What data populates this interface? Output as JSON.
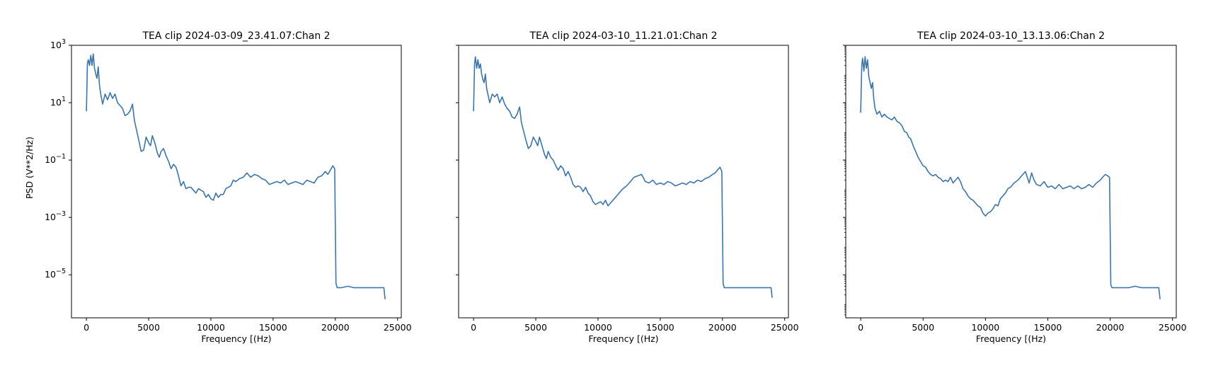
{
  "figure": {
    "ylabel": "PSD (V**2/Hz)",
    "line_color": "#3a75af"
  },
  "chart_data": [
    {
      "type": "line",
      "title": "TEA clip 2024-03-09_23.41.07:Chan 2",
      "xlabel": "Frequency [(Hz)",
      "ylabel": "PSD (V**2/Hz)",
      "xlim": [
        -1200,
        25300
      ],
      "ylim_log10": [
        -6.5,
        3.0
      ],
      "yscale": "log",
      "xticks": [
        "0",
        "5000",
        "10000",
        "15000",
        "20000",
        "25000"
      ],
      "yticks": [
        "10^3",
        "10^1",
        "10^-1",
        "10^-3",
        "10^-5"
      ],
      "series": [
        {
          "x": [
            0,
            80,
            150,
            250,
            350,
            450,
            550,
            650,
            750,
            850,
            950,
            1050,
            1150,
            1300,
            1500,
            1700,
            1900,
            2100,
            2300,
            2500,
            2700,
            2900,
            3100,
            3300,
            3500,
            3700,
            3850,
            4000,
            4200,
            4400,
            4600,
            4800,
            5000,
            5150,
            5300,
            5500,
            5700,
            5850,
            6000,
            6200,
            6400,
            6600,
            6800,
            7000,
            7200,
            7400,
            7600,
            7800,
            8000,
            8200,
            8400,
            8600,
            8800,
            9000,
            9200,
            9400,
            9600,
            9800,
            10000,
            10200,
            10400,
            10600,
            10800,
            11000,
            11200,
            11400,
            11600,
            11800,
            12000,
            12300,
            12600,
            12900,
            13200,
            13500,
            13800,
            14100,
            14400,
            14700,
            15000,
            15300,
            15600,
            15900,
            16200,
            16500,
            16800,
            17100,
            17400,
            17700,
            18000,
            18300,
            18600,
            18900,
            19200,
            19400,
            19600,
            19800,
            19950,
            20050,
            20150,
            20500,
            21000,
            21500,
            22000,
            22500,
            23000,
            23500,
            23900,
            24000
          ],
          "y_log10": [
            0.7,
            2.35,
            2.5,
            2.3,
            2.65,
            2.3,
            2.7,
            2.2,
            2.0,
            1.85,
            2.25,
            1.6,
            1.3,
            0.95,
            1.3,
            1.1,
            1.35,
            1.15,
            1.3,
            1.0,
            0.9,
            0.8,
            0.55,
            0.6,
            0.7,
            0.95,
            0.4,
            0.1,
            -0.3,
            -0.7,
            -0.65,
            -0.2,
            -0.4,
            -0.5,
            -0.15,
            -0.4,
            -0.75,
            -0.9,
            -0.7,
            -0.6,
            -0.85,
            -1.05,
            -1.3,
            -1.15,
            -1.25,
            -1.55,
            -1.9,
            -1.75,
            -2.0,
            -1.95,
            -1.95,
            -2.05,
            -2.15,
            -2.0,
            -2.05,
            -2.1,
            -2.3,
            -2.2,
            -2.35,
            -2.4,
            -2.15,
            -2.3,
            -2.2,
            -2.2,
            -2.0,
            -1.95,
            -1.9,
            -1.7,
            -1.75,
            -1.65,
            -1.6,
            -1.45,
            -1.6,
            -1.5,
            -1.55,
            -1.65,
            -1.7,
            -1.85,
            -1.8,
            -1.75,
            -1.8,
            -1.7,
            -1.85,
            -1.8,
            -1.75,
            -1.8,
            -1.85,
            -1.7,
            -1.75,
            -1.8,
            -1.6,
            -1.55,
            -1.4,
            -1.5,
            -1.35,
            -1.2,
            -1.3,
            -5.3,
            -5.45,
            -5.45,
            -5.4,
            -5.45,
            -5.45,
            -5.45,
            -5.45,
            -5.45,
            -5.45,
            -5.85
          ]
        }
      ]
    },
    {
      "type": "line",
      "title": "TEA clip 2024-03-10_11.21.01:Chan 2",
      "xlabel": "Frequency [(Hz)",
      "xlim": [
        -1200,
        25300
      ],
      "ylim_log10": [
        -6.5,
        3.0
      ],
      "yscale": "log",
      "xticks": [
        "0",
        "5000",
        "10000",
        "15000",
        "20000",
        "25000"
      ],
      "series": [
        {
          "x": [
            0,
            80,
            150,
            250,
            350,
            450,
            550,
            650,
            750,
            850,
            950,
            1050,
            1150,
            1300,
            1500,
            1700,
            1900,
            2100,
            2300,
            2500,
            2700,
            2900,
            3100,
            3300,
            3500,
            3700,
            3850,
            4000,
            4200,
            4400,
            4600,
            4800,
            5000,
            5150,
            5300,
            5500,
            5700,
            5850,
            6000,
            6200,
            6400,
            6600,
            6800,
            7000,
            7200,
            7400,
            7600,
            7800,
            8000,
            8200,
            8400,
            8600,
            8800,
            9000,
            9200,
            9400,
            9600,
            9800,
            10000,
            10200,
            10400,
            10600,
            10800,
            11000,
            11200,
            11400,
            11600,
            11800,
            12000,
            12300,
            12600,
            12900,
            13200,
            13500,
            13800,
            14100,
            14400,
            14700,
            15000,
            15300,
            15600,
            15900,
            16200,
            16500,
            16800,
            17100,
            17400,
            17700,
            18000,
            18300,
            18600,
            18900,
            19200,
            19400,
            19600,
            19800,
            19950,
            20050,
            20150,
            20500,
            21000,
            21500,
            22000,
            22500,
            23000,
            23500,
            23900,
            24000
          ],
          "y_log10": [
            0.7,
            2.35,
            2.6,
            2.2,
            2.5,
            2.2,
            2.35,
            2.0,
            1.8,
            1.7,
            2.0,
            1.5,
            1.3,
            1.0,
            1.3,
            1.2,
            1.3,
            1.0,
            1.2,
            0.95,
            0.8,
            0.7,
            0.5,
            0.45,
            0.6,
            0.85,
            0.3,
            0.05,
            -0.3,
            -0.6,
            -0.5,
            -0.2,
            -0.35,
            -0.5,
            -0.2,
            -0.5,
            -0.8,
            -0.95,
            -0.7,
            -0.9,
            -1.0,
            -1.2,
            -1.35,
            -1.2,
            -1.3,
            -1.55,
            -1.4,
            -1.6,
            -1.85,
            -1.95,
            -1.9,
            -1.95,
            -2.1,
            -1.95,
            -2.15,
            -2.25,
            -2.45,
            -2.55,
            -2.5,
            -2.45,
            -2.55,
            -2.4,
            -2.6,
            -2.5,
            -2.4,
            -2.3,
            -2.2,
            -2.1,
            -2.0,
            -1.9,
            -1.75,
            -1.6,
            -1.55,
            -1.5,
            -1.75,
            -1.8,
            -1.7,
            -1.85,
            -1.8,
            -1.85,
            -1.75,
            -1.8,
            -1.9,
            -1.85,
            -1.8,
            -1.85,
            -1.75,
            -1.8,
            -1.7,
            -1.75,
            -1.65,
            -1.6,
            -1.5,
            -1.45,
            -1.35,
            -1.25,
            -1.4,
            -5.3,
            -5.45,
            -5.45,
            -5.45,
            -5.45,
            -5.45,
            -5.45,
            -5.45,
            -5.45,
            -5.45,
            -5.8
          ]
        }
      ]
    },
    {
      "type": "line",
      "title": "TEA clip 2024-03-10_13.13.06:Chan 2",
      "xlabel": "Frequency [(Hz)",
      "xlim": [
        -1200,
        25300
      ],
      "ylim_log10": [
        -6.5,
        3.0
      ],
      "yscale": "log",
      "xticks": [
        "0",
        "5000",
        "10000",
        "15000",
        "20000",
        "25000"
      ],
      "series": [
        {
          "x": [
            0,
            80,
            150,
            250,
            350,
            450,
            550,
            650,
            750,
            850,
            950,
            1050,
            1150,
            1300,
            1500,
            1700,
            1900,
            2100,
            2300,
            2500,
            2700,
            2900,
            3100,
            3300,
            3500,
            3700,
            3850,
            4000,
            4200,
            4400,
            4600,
            4800,
            5000,
            5200,
            5400,
            5600,
            5800,
            6000,
            6200,
            6400,
            6600,
            6800,
            7000,
            7200,
            7400,
            7600,
            7800,
            8000,
            8200,
            8400,
            8600,
            8800,
            9000,
            9200,
            9400,
            9600,
            9800,
            10000,
            10200,
            10400,
            10600,
            10800,
            11000,
            11200,
            11400,
            11600,
            11800,
            12000,
            12300,
            12600,
            12900,
            13200,
            13500,
            13700,
            13900,
            14100,
            14400,
            14700,
            15000,
            15300,
            15600,
            15900,
            16200,
            16500,
            16800,
            17100,
            17400,
            17700,
            18000,
            18300,
            18600,
            18900,
            19200,
            19400,
            19600,
            19800,
            19950,
            20050,
            20150,
            20500,
            21000,
            21500,
            22000,
            22500,
            23000,
            23500,
            23900,
            24000
          ],
          "y_log10": [
            0.65,
            2.3,
            2.55,
            2.1,
            2.6,
            2.2,
            2.5,
            1.9,
            1.7,
            1.5,
            1.7,
            1.1,
            0.8,
            0.6,
            0.7,
            0.5,
            0.6,
            0.5,
            0.45,
            0.4,
            0.5,
            0.35,
            0.3,
            0.2,
            0.0,
            -0.05,
            -0.2,
            -0.25,
            -0.5,
            -0.7,
            -0.9,
            -1.05,
            -1.2,
            -1.25,
            -1.4,
            -1.5,
            -1.55,
            -1.5,
            -1.6,
            -1.65,
            -1.75,
            -1.7,
            -1.75,
            -1.6,
            -1.8,
            -1.7,
            -1.6,
            -1.75,
            -2.0,
            -2.1,
            -2.25,
            -2.35,
            -2.4,
            -2.5,
            -2.6,
            -2.65,
            -2.85,
            -2.95,
            -2.85,
            -2.8,
            -2.7,
            -2.55,
            -2.6,
            -2.35,
            -2.25,
            -2.15,
            -2.0,
            -1.95,
            -1.8,
            -1.7,
            -1.55,
            -1.4,
            -1.8,
            -1.45,
            -1.7,
            -1.85,
            -1.9,
            -1.75,
            -1.95,
            -1.9,
            -2.0,
            -1.85,
            -2.0,
            -1.95,
            -1.9,
            -2.0,
            -1.9,
            -2.0,
            -1.95,
            -1.85,
            -1.95,
            -1.8,
            -1.7,
            -1.6,
            -1.5,
            -1.55,
            -1.6,
            -5.35,
            -5.45,
            -5.45,
            -5.45,
            -5.45,
            -5.4,
            -5.45,
            -5.45,
            -5.45,
            -5.45,
            -5.85
          ]
        }
      ]
    }
  ]
}
